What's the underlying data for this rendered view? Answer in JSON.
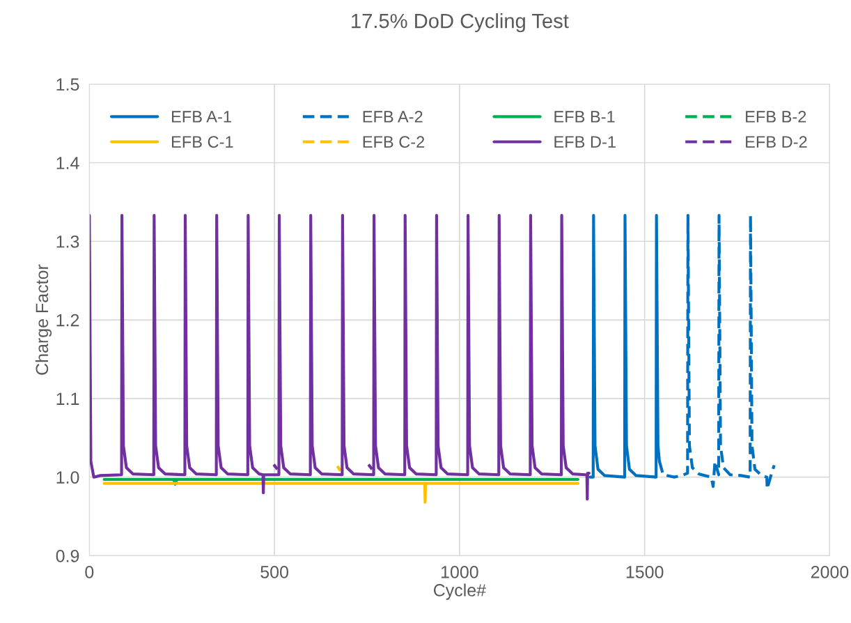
{
  "chart_data": {
    "type": "line",
    "title": "17.5% DoD Cycling Test",
    "xlabel": "Cycle#",
    "ylabel": "Charge Factor",
    "xlim": [
      0,
      2000
    ],
    "xticks": [
      0,
      500,
      1000,
      1500,
      2000
    ],
    "ylim": [
      0.9,
      1.5
    ],
    "yticks": [
      {
        "value": 0.9,
        "label": "0.9"
      },
      {
        "value": 1.0,
        "label": "1.0"
      },
      {
        "value": 1.1,
        "label": "1.1"
      },
      {
        "value": 1.2,
        "label": "1.2"
      },
      {
        "value": 1.3,
        "label": "1.3"
      },
      {
        "value": 1.4,
        "label": "1.4"
      },
      {
        "value": 1.5,
        "label": "1.5"
      }
    ],
    "grid": true,
    "legend": "top",
    "marker": "none",
    "series": [
      {
        "name": "EFB A-1",
        "color": "#0070c0",
        "line_style": "solid",
        "x": [
          1353,
          1361,
          1362,
          1366,
          1374,
          1392,
          1446,
          1447,
          1451,
          1459,
          1477,
          1531,
          1532,
          1536,
          1540
        ],
        "values": [
          1.0,
          1.0,
          1.333,
          1.04,
          1.01,
          1.002,
          1.0,
          1.333,
          1.04,
          1.01,
          1.002,
          1.0,
          1.333,
          1.04,
          1.02
        ]
      },
      {
        "name": "EFB A-2",
        "color": "#0070c0",
        "line_style": "dashed",
        "x": [
          1540,
          1550,
          1580,
          1600,
          1616,
          1617,
          1621,
          1629,
          1647,
          1680,
          1685,
          1690,
          1700,
          1701,
          1705,
          1713,
          1731,
          1760,
          1785,
          1786,
          1790,
          1798,
          1816,
          1830,
          1831,
          1840,
          1850
        ],
        "values": [
          1.02,
          1.003,
          1.0,
          1.002,
          1.005,
          1.333,
          1.04,
          1.012,
          1.004,
          1.0,
          0.988,
          1.02,
          1.003,
          1.333,
          1.04,
          1.012,
          1.003,
          1.002,
          1.0,
          1.333,
          1.04,
          1.01,
          1.002,
          1.0,
          0.985,
          1.0,
          1.015
        ]
      },
      {
        "name": "EFB B-1",
        "color": "#00b050",
        "line_style": "solid",
        "x": [
          40,
          300,
          600,
          900,
          1200,
          1320
        ],
        "values": [
          0.997,
          0.997,
          0.997,
          0.997,
          0.997,
          0.997
        ]
      },
      {
        "name": "EFB B-2",
        "color": "#00b050",
        "line_style": "dashed",
        "x": [
          228,
          232,
          236
        ],
        "values": [
          0.997,
          0.991,
          0.997
        ]
      },
      {
        "name": "EFB C-1",
        "color": "#ffc000",
        "line_style": "solid",
        "x": [
          40,
          300,
          600,
          906,
          907,
          908,
          1100,
          1320
        ],
        "values": [
          0.992,
          0.992,
          0.992,
          0.992,
          0.968,
          0.992,
          0.992,
          0.992
        ]
      },
      {
        "name": "EFB C-2",
        "color": "#ffc000",
        "line_style": "dashed",
        "x": [
          670,
          678
        ],
        "values": [
          1.014,
          1.008
        ]
      },
      {
        "name": "EFB D-1",
        "color": "#7030a0",
        "line_style": "solid",
        "x": [
          0,
          4,
          12,
          30,
          87,
          88,
          92,
          100,
          118,
          174,
          175,
          179,
          187,
          205,
          258,
          259,
          263,
          271,
          289,
          343,
          344,
          348,
          356,
          374,
          428,
          429,
          433,
          441,
          459,
          469,
          470,
          471,
          512,
          513,
          517,
          525,
          543,
          597,
          598,
          602,
          610,
          628,
          683,
          684,
          688,
          696,
          714,
          768,
          769,
          773,
          781,
          799,
          852,
          853,
          857,
          865,
          883,
          937,
          938,
          942,
          950,
          968,
          1022,
          1023,
          1027,
          1035,
          1053,
          1106,
          1107,
          1111,
          1119,
          1137,
          1191,
          1192,
          1196,
          1204,
          1222,
          1275,
          1276,
          1280,
          1288,
          1306,
          1340,
          1344,
          1345,
          1346,
          1350
        ],
        "values": [
          1.333,
          1.02,
          1.0,
          1.002,
          1.003,
          1.333,
          1.04,
          1.012,
          1.004,
          1.003,
          1.333,
          1.04,
          1.012,
          1.004,
          1.003,
          1.333,
          1.04,
          1.012,
          1.004,
          1.003,
          1.333,
          1.04,
          1.012,
          1.004,
          1.003,
          1.333,
          1.04,
          1.012,
          1.004,
          1.003,
          0.98,
          1.003,
          1.003,
          1.333,
          1.04,
          1.012,
          1.004,
          1.003,
          1.333,
          1.04,
          1.012,
          1.004,
          1.003,
          1.333,
          1.04,
          1.012,
          1.004,
          1.003,
          1.333,
          1.04,
          1.012,
          1.004,
          1.003,
          1.333,
          1.04,
          1.012,
          1.004,
          1.003,
          1.333,
          1.04,
          1.012,
          1.004,
          1.003,
          1.333,
          1.04,
          1.012,
          1.004,
          1.003,
          1.333,
          1.04,
          1.012,
          1.004,
          1.003,
          1.333,
          1.04,
          1.012,
          1.004,
          1.003,
          1.333,
          1.04,
          1.012,
          1.004,
          1.003,
          1.003,
          0.972,
          1.005,
          1.005
        ]
      },
      {
        "name": "EFB D-2",
        "color": "#7030a0",
        "line_style": "dashed",
        "x": [
          498,
          508,
          509,
          754,
          764
        ],
        "values": [
          1.016,
          1.01,
          null,
          1.016,
          1.01
        ]
      }
    ]
  }
}
